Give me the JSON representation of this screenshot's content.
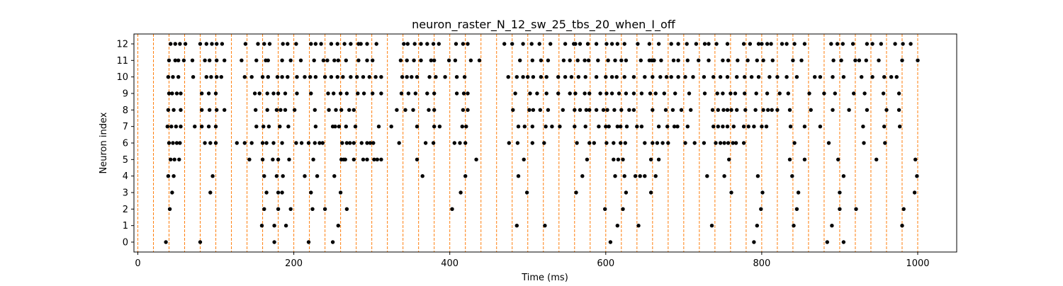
{
  "chart_data": {
    "type": "scatter",
    "title": "neuron_raster_N_12_sw_25_tbs_20_when_I_off",
    "xlabel": "Time (ms)",
    "ylabel": "Neuron index",
    "xlim": [
      -5,
      1050
    ],
    "ylim": [
      -0.6,
      12.6
    ],
    "xticks": [
      0,
      200,
      400,
      600,
      800,
      1000
    ],
    "yticks": [
      0,
      1,
      2,
      3,
      4,
      5,
      6,
      7,
      8,
      9,
      10,
      11,
      12
    ],
    "grid": false,
    "legend": "none",
    "marker_color": "#000000",
    "vline_color": "#ff7f0e",
    "vline_style": "dashed",
    "vlines_x": [
      0,
      20,
      40,
      60,
      80,
      100,
      120,
      140,
      160,
      180,
      200,
      220,
      240,
      260,
      280,
      300,
      320,
      340,
      360,
      380,
      400,
      420,
      440,
      460,
      480,
      500,
      520,
      540,
      560,
      580,
      600,
      620,
      640,
      660,
      680,
      700,
      720,
      740,
      760,
      780,
      800,
      820,
      840,
      860,
      880,
      900,
      920,
      940,
      960,
      980,
      1000
    ],
    "spikes": [
      {
        "neuron": 0,
        "times": [
          36,
          80,
          175,
          219,
          250,
          606,
          790,
          884,
          905
        ]
      },
      {
        "neuron": 1,
        "times": [
          159,
          175,
          190,
          257,
          486,
          522,
          615,
          642,
          736,
          794,
          841,
          890,
          980
        ]
      },
      {
        "neuron": 2,
        "times": [
          41,
          162,
          180,
          196,
          224,
          240,
          268,
          403,
          599,
          622,
          799,
          845,
          900,
          921,
          982
        ]
      },
      {
        "neuron": 3,
        "times": [
          44,
          93,
          165,
          180,
          185,
          222,
          260,
          414,
          499,
          562,
          626,
          658,
          761,
          801,
          847,
          900,
          996
        ]
      },
      {
        "neuron": 4,
        "times": [
          39,
          46,
          96,
          162,
          178,
          186,
          214,
          230,
          252,
          365,
          420,
          488,
          570,
          612,
          624,
          638,
          644,
          650,
          664,
          730,
          752,
          795,
          839,
          905,
          999
        ]
      },
      {
        "neuron": 5,
        "times": [
          42,
          47,
          53,
          143,
          160,
          173,
          180,
          194,
          225,
          261,
          264,
          266,
          277,
          289,
          294,
          303,
          307,
          312,
          358,
          434,
          495,
          576,
          610,
          616,
          622,
          658,
          668,
          758,
          836,
          855,
          898,
          947,
          997
        ]
      },
      {
        "neuron": 6,
        "times": [
          40,
          45,
          50,
          54,
          86,
          93,
          100,
          127,
          137,
          146,
          160,
          165,
          174,
          185,
          203,
          210,
          219,
          227,
          233,
          237,
          262,
          268,
          272,
          277,
          287,
          294,
          298,
          302,
          335,
          369,
          379,
          406,
          413,
          420,
          476,
          487,
          506,
          521,
          563,
          579,
          585,
          601,
          610,
          619,
          625,
          650,
          660,
          666,
          673,
          680,
          702,
          714,
          726,
          741,
          747,
          752,
          757,
          763,
          767,
          777,
          842,
          886,
          931,
          958
        ]
      },
      {
        "neuron": 7,
        "times": [
          38,
          43,
          49,
          55,
          73,
          82,
          91,
          100,
          152,
          161,
          168,
          182,
          193,
          228,
          250,
          253,
          258,
          267,
          279,
          309,
          325,
          358,
          380,
          387,
          416,
          421,
          488,
          496,
          506,
          523,
          531,
          541,
          560,
          574,
          591,
          600,
          604,
          615,
          619,
          627,
          640,
          646,
          668,
          679,
          688,
          692,
          705,
          738,
          744,
          750,
          756,
          764,
          777,
          783,
          790,
          800,
          806,
          837,
          855,
          875,
          930,
          957,
          977
        ]
      },
      {
        "neuron": 8,
        "times": [
          39,
          46,
          55,
          82,
          92,
          101,
          111,
          151,
          166,
          178,
          183,
          189,
          201,
          227,
          245,
          254,
          261,
          271,
          277,
          332,
          343,
          353,
          373,
          380,
          417,
          423,
          481,
          502,
          507,
          516,
          526,
          545,
          560,
          567,
          575,
          579,
          588,
          597,
          602,
          611,
          620,
          630,
          636,
          660,
          677,
          686,
          697,
          709,
          737,
          744,
          751,
          756,
          761,
          768,
          779,
          792,
          802,
          808,
          813,
          820,
          836,
          863,
          891,
          912,
          935,
          960,
          976
        ]
      },
      {
        "neuron": 9,
        "times": [
          40,
          44,
          50,
          55,
          82,
          91,
          100,
          150,
          156,
          166,
          174,
          180,
          189,
          204,
          222,
          244,
          251,
          260,
          268,
          282,
          290,
          301,
          312,
          338,
          347,
          356,
          371,
          380,
          409,
          418,
          423,
          484,
          503,
          512,
          524,
          539,
          554,
          561,
          573,
          579,
          593,
          601,
          608,
          617,
          626,
          636,
          646,
          657,
          664,
          675,
          689,
          707,
          727,
          743,
          750,
          760,
          766,
          778,
          793,
          807,
          823,
          834,
          861,
          880,
          894,
          918,
          932,
          956,
          976
        ]
      },
      {
        "neuron": 10,
        "times": [
          39,
          45,
          52,
          71,
          88,
          94,
          101,
          107,
          137,
          146,
          160,
          167,
          179,
          185,
          192,
          204,
          214,
          221,
          228,
          240,
          248,
          256,
          263,
          273,
          281,
          289,
          297,
          305,
          312,
          339,
          345,
          351,
          358,
          374,
          382,
          394,
          409,
          419,
          475,
          486,
          494,
          500,
          507,
          517,
          524,
          539,
          548,
          556,
          565,
          574,
          588,
          600,
          608,
          614,
          624,
          636,
          650,
          660,
          670,
          678,
          684,
          693,
          702,
          712,
          726,
          738,
          747,
          756,
          768,
          778,
          787,
          796,
          810,
          820,
          832,
          845,
          868,
          875,
          891,
          905,
          928,
          942,
          957,
          966,
          973
        ]
      },
      {
        "neuron": 11,
        "times": [
          40,
          48,
          52,
          59,
          70,
          86,
          92,
          101,
          111,
          133,
          152,
          164,
          167,
          185,
          196,
          209,
          226,
          238,
          243,
          252,
          257,
          267,
          283,
          294,
          301,
          337,
          345,
          354,
          363,
          376,
          380,
          399,
          407,
          427,
          438,
          490,
          506,
          517,
          526,
          546,
          554,
          564,
          573,
          578,
          590,
          603,
          612,
          620,
          626,
          645,
          656,
          659,
          661,
          662,
          671,
          687,
          693,
          705,
          719,
          732,
          750,
          757,
          769,
          782,
          794,
          802,
          814,
          840,
          851,
          892,
          902,
          920,
          925,
          934,
          950,
          980,
          1000
        ]
      },
      {
        "neuron": 12,
        "times": [
          42,
          48,
          54,
          61,
          80,
          88,
          95,
          101,
          108,
          138,
          154,
          162,
          169,
          186,
          192,
          203,
          222,
          228,
          235,
          248,
          256,
          265,
          273,
          283,
          286,
          294,
          306,
          341,
          346,
          355,
          363,
          371,
          379,
          386,
          408,
          417,
          423,
          470,
          480,
          494,
          505,
          515,
          529,
          548,
          559,
          561,
          567,
          577,
          588,
          601,
          608,
          615,
          624,
          641,
          656,
          668,
          684,
          693,
          704,
          716,
          727,
          732,
          742,
          756,
          777,
          785,
          796,
          800,
          807,
          812,
          826,
          832,
          842,
          855,
          889,
          897,
          904,
          917,
          935,
          942,
          953,
          971,
          981,
          991
        ]
      }
    ]
  }
}
